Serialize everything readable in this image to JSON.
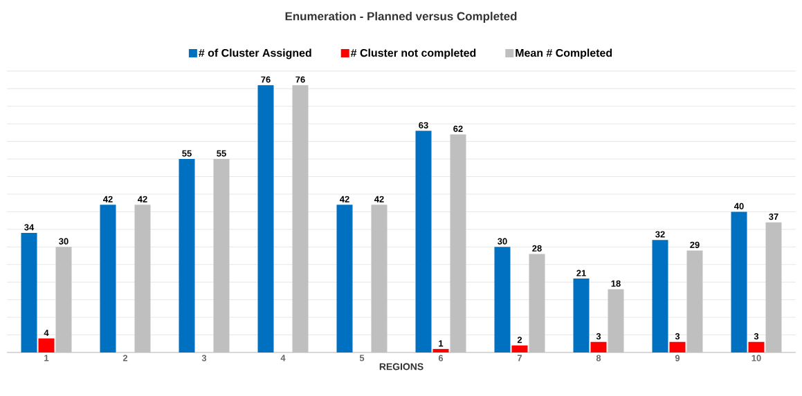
{
  "chart_data": {
    "type": "bar",
    "title": "Enumeration  - Planned versus Completed",
    "xlabel": "REGIONS",
    "categories": [
      "1",
      "2",
      "3",
      "4",
      "5",
      "6",
      "7",
      "8",
      "9",
      "10"
    ],
    "series": [
      {
        "name": "# of Cluster Assigned",
        "color": "#0070c0",
        "values": [
          34,
          42,
          55,
          76,
          42,
          63,
          30,
          21,
          32,
          40
        ]
      },
      {
        "name": "# Cluster not completed",
        "color": "#ff0000",
        "values": [
          4,
          null,
          null,
          null,
          null,
          1,
          2,
          3,
          3,
          3
        ]
      },
      {
        "name": "Mean # Completed",
        "color": "#bfbfbf",
        "values": [
          30,
          42,
          55,
          76,
          42,
          62,
          28,
          18,
          29,
          37
        ]
      }
    ],
    "grid": "y",
    "legend": "top",
    "data_labels": true,
    "tick_labels": "x"
  }
}
